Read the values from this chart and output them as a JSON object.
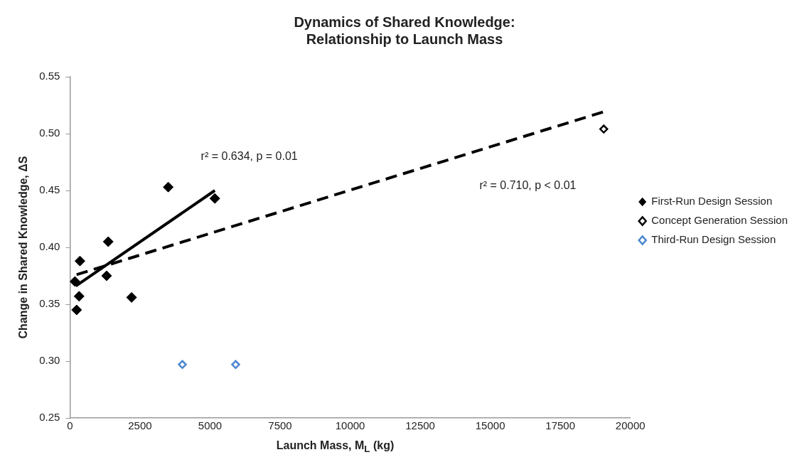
{
  "chart_data": {
    "type": "scatter",
    "title": "Dynamics of Shared Knowledge:\nRelationship to Launch Mass",
    "xlabel": "Launch Mass, M$_{L}$ (kg)",
    "ylabel": "Change in Shared Knowledge, ΔS",
    "xlim": [
      0,
      20000
    ],
    "xticks": [
      0,
      2500,
      5000,
      7500,
      10000,
      12500,
      15000,
      17500,
      20000
    ],
    "ylim": [
      0.25,
      0.55
    ],
    "yticks": [
      0.25,
      {
        "value": 0.3,
        "label": "0.30"
      },
      0.35,
      {
        "value": 0.4,
        "label": "0.40"
      },
      0.45,
      {
        "value": 0.5,
        "label": "0.50"
      },
      0.55
    ],
    "grid": false,
    "legend": "right",
    "marker": "diamond",
    "series": [
      {
        "name": "First-Run Design Session",
        "color": "#000000",
        "x": [
          178,
          238,
          327,
          357,
          1308,
          1367,
          2199,
          3507,
          5171
        ],
        "values": [
          0.37,
          0.345,
          0.357,
          0.388,
          0.375,
          0.405,
          0.356,
          0.453,
          0.443
        ]
      },
      {
        "name": "Concept Generation Session",
        "color": "#000000",
        "x": [
          19050
        ],
        "values": [
          0.504
        ]
      },
      {
        "name": "Third-Run Design Session",
        "color": "#4a86d0",
        "x": [
          4012,
          5914
        ],
        "values": [
          0.297,
          0.297
        ]
      },
      {
        "type": "line",
        "color": "#000000",
        "line_style": "solid",
        "marker": "none",
        "x": [
          208,
          5171
        ],
        "values": [
          0.366,
          0.45
        ]
      },
      {
        "type": "line",
        "color": "#000000",
        "line_style": "dashed",
        "marker": "none",
        "x": [
          238,
          19020
        ],
        "values": [
          0.376,
          0.519
        ]
      }
    ],
    "annotations": [
      "r² = 0.634, p = 0.01",
      "r² = 0.710, p < 0.01"
    ]
  }
}
